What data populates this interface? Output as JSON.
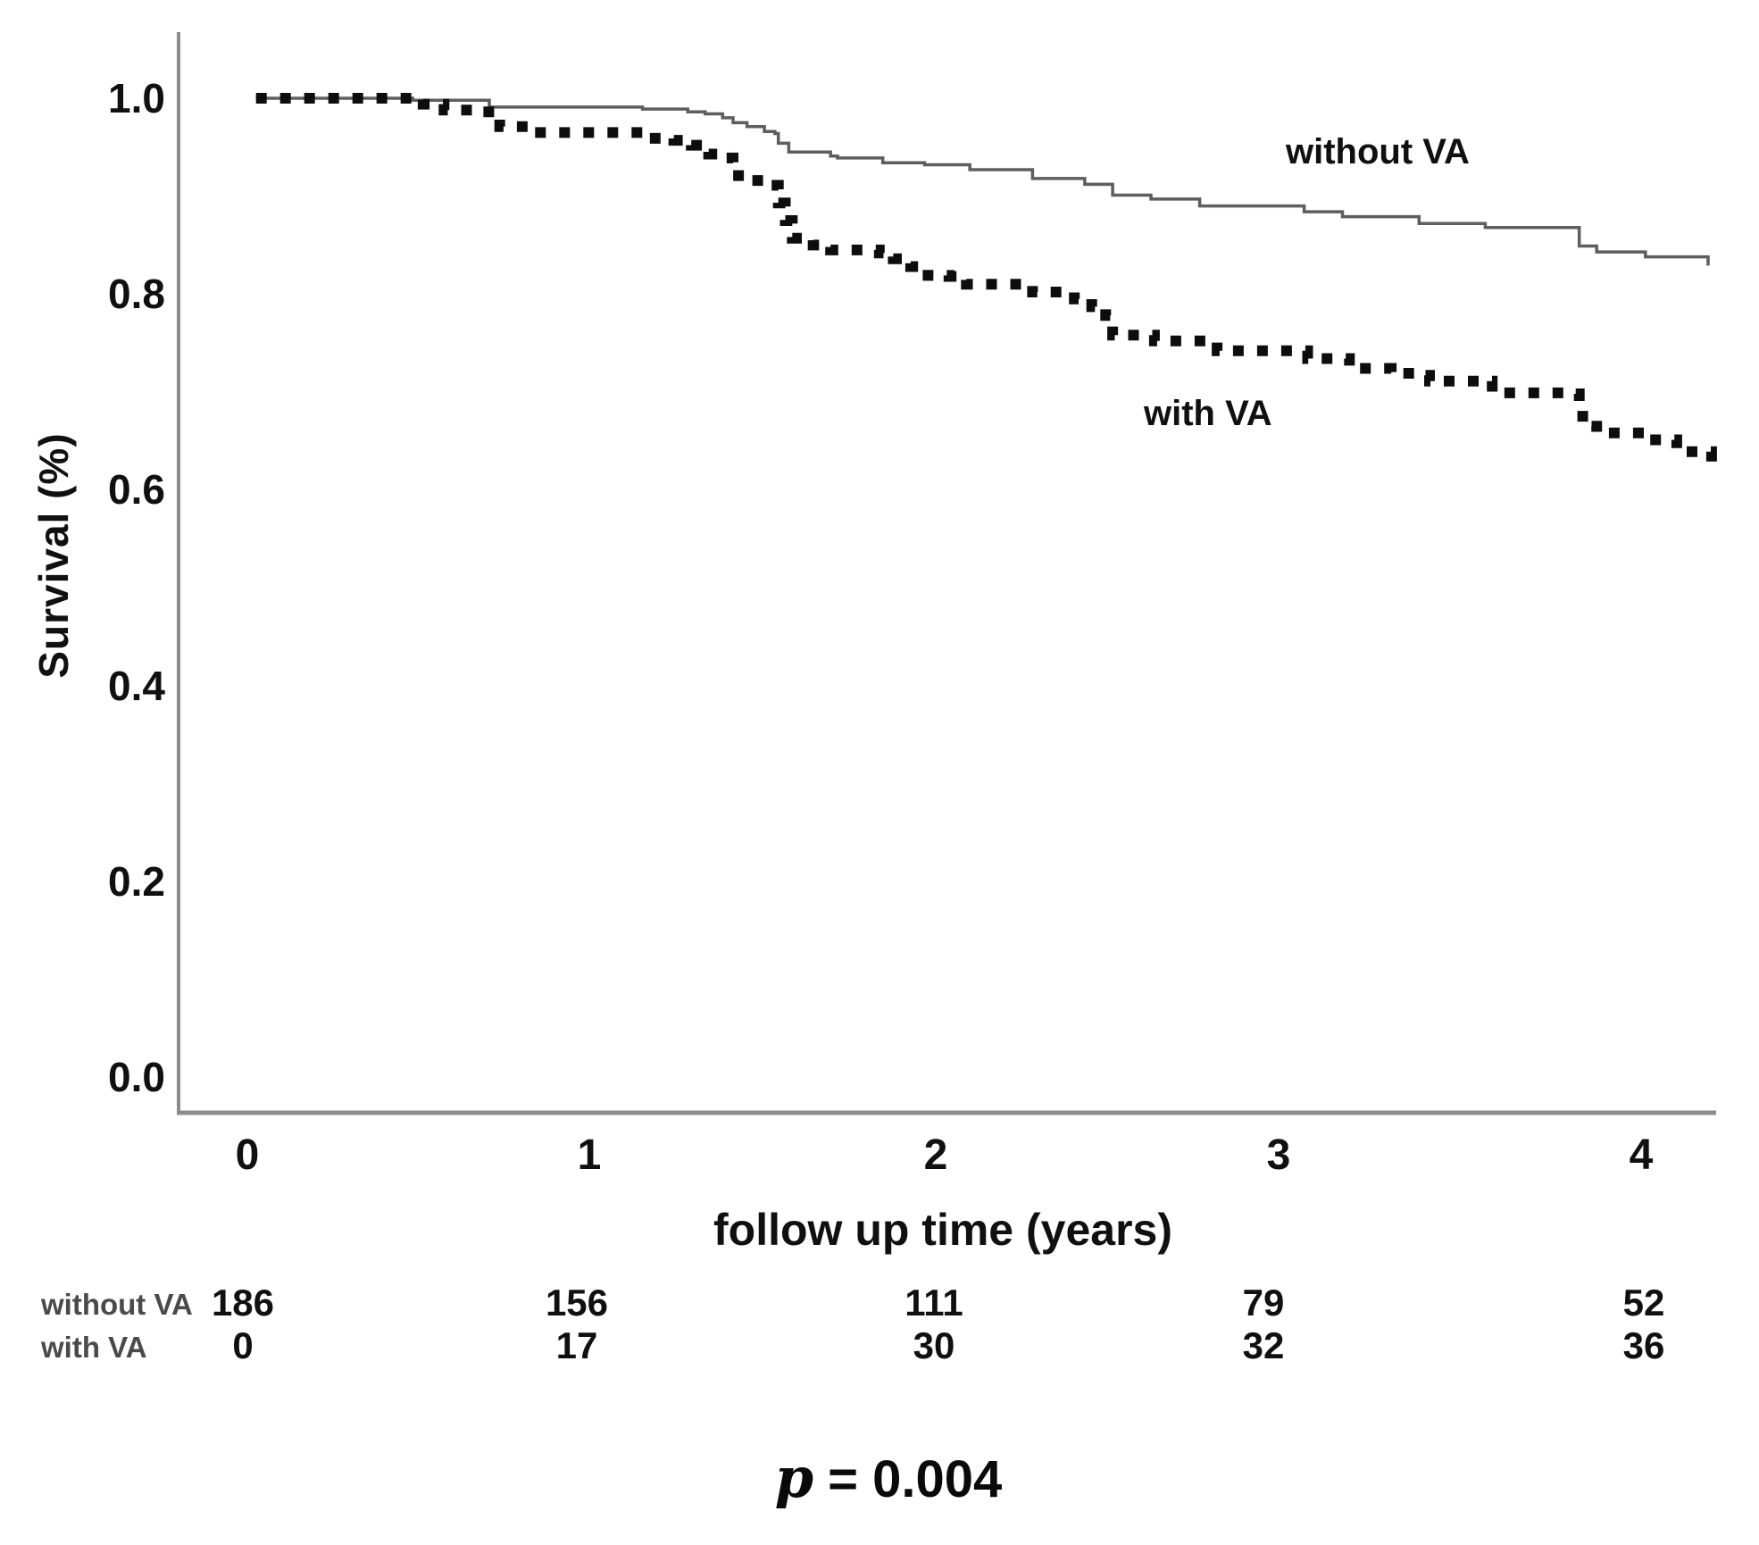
{
  "figure": {
    "background": "#ffffff"
  },
  "chart_data": {
    "type": "line",
    "subtype": "kaplan-meier-step-curves",
    "title": "",
    "xlabel": "follow up time (years)",
    "ylabel": "Survival (%)",
    "x_ticks": [
      {
        "label": "0",
        "value": 0
      },
      {
        "label": "1",
        "value": 1
      },
      {
        "label": "2",
        "value": 2
      },
      {
        "label": "3",
        "value": 3
      },
      {
        "label": "4",
        "value": 4
      }
    ],
    "y_ticks": [
      {
        "label": "1.0",
        "value": 1.0
      },
      {
        "label": "0.8",
        "value": 0.8
      },
      {
        "label": "0.6",
        "value": 0.6
      },
      {
        "label": "0.4",
        "value": 0.4
      },
      {
        "label": "0.2",
        "value": 0.2
      },
      {
        "label": "0.0",
        "value": 0.0
      }
    ],
    "xlim": [
      -0.19,
      4.35
    ],
    "ylim": [
      -0.035,
      1.065
    ],
    "grid": false,
    "legend_position": "annotations-on-plot",
    "series": [
      {
        "name": "without VA",
        "line_style": "solid",
        "color": "#5e5e5e",
        "points": [
          [
            0.03,
            1.0
          ],
          [
            0.45,
            1.0
          ],
          [
            0.48,
            0.998
          ],
          [
            0.7,
            0.991
          ],
          [
            1.14,
            0.989
          ],
          [
            1.27,
            0.986
          ],
          [
            1.32,
            0.984
          ],
          [
            1.37,
            0.98
          ],
          [
            1.4,
            0.975
          ],
          [
            1.44,
            0.971
          ],
          [
            1.49,
            0.966
          ],
          [
            1.52,
            0.964
          ],
          [
            1.53,
            0.954
          ],
          [
            1.56,
            0.945
          ],
          [
            1.68,
            0.941
          ],
          [
            1.7,
            0.939
          ],
          [
            1.83,
            0.934
          ],
          [
            1.95,
            0.932
          ],
          [
            2.08,
            0.927
          ],
          [
            2.26,
            0.918
          ],
          [
            2.41,
            0.912
          ],
          [
            2.49,
            0.901
          ],
          [
            2.6,
            0.897
          ],
          [
            2.74,
            0.89
          ],
          [
            3.04,
            0.884
          ],
          [
            3.15,
            0.879
          ],
          [
            3.37,
            0.872
          ],
          [
            3.56,
            0.868
          ],
          [
            3.83,
            0.849
          ],
          [
            3.88,
            0.843
          ],
          [
            4.02,
            0.838
          ],
          [
            4.2,
            0.829
          ]
        ]
      },
      {
        "name": "with VA",
        "line_style": "dotted",
        "color": "#0d0d0d",
        "points": [
          [
            0.03,
            1.0
          ],
          [
            0.45,
            1.0
          ],
          [
            0.51,
            0.994
          ],
          [
            0.57,
            0.988
          ],
          [
            0.68,
            0.986
          ],
          [
            0.73,
            0.971
          ],
          [
            0.82,
            0.965
          ],
          [
            1.1,
            0.965
          ],
          [
            1.16,
            0.959
          ],
          [
            1.23,
            0.957
          ],
          [
            1.28,
            0.952
          ],
          [
            1.33,
            0.943
          ],
          [
            1.38,
            0.939
          ],
          [
            1.4,
            0.921
          ],
          [
            1.45,
            0.916
          ],
          [
            1.51,
            0.911
          ],
          [
            1.53,
            0.893
          ],
          [
            1.55,
            0.875
          ],
          [
            1.57,
            0.857
          ],
          [
            1.63,
            0.85
          ],
          [
            1.68,
            0.845
          ],
          [
            1.82,
            0.842
          ],
          [
            1.86,
            0.836
          ],
          [
            1.91,
            0.828
          ],
          [
            1.96,
            0.819
          ],
          [
            2.02,
            0.818
          ],
          [
            2.07,
            0.81
          ],
          [
            2.22,
            0.81
          ],
          [
            2.26,
            0.802
          ],
          [
            2.38,
            0.795
          ],
          [
            2.43,
            0.787
          ],
          [
            2.47,
            0.778
          ],
          [
            2.49,
            0.758
          ],
          [
            2.61,
            0.752
          ],
          [
            2.75,
            0.752
          ],
          [
            2.79,
            0.742
          ],
          [
            3.0,
            0.742
          ],
          [
            3.05,
            0.734
          ],
          [
            3.17,
            0.724
          ],
          [
            3.29,
            0.719
          ],
          [
            3.36,
            0.717
          ],
          [
            3.4,
            0.711
          ],
          [
            3.54,
            0.711
          ],
          [
            3.58,
            0.699
          ],
          [
            3.79,
            0.698
          ],
          [
            3.83,
            0.689
          ],
          [
            3.84,
            0.665
          ],
          [
            3.88,
            0.658
          ],
          [
            4.0,
            0.651
          ],
          [
            4.11,
            0.639
          ],
          [
            4.21,
            0.628
          ]
        ]
      }
    ]
  },
  "risk_table": {
    "time_points": [
      0,
      1,
      2,
      3,
      4
    ],
    "rows": [
      {
        "label": "without VA",
        "values": [
          "186",
          "156",
          "111",
          "79",
          "52"
        ]
      },
      {
        "label": "with VA",
        "values": [
          "0",
          "17",
          "30",
          "32",
          "36"
        ]
      }
    ]
  },
  "p_value": {
    "symbol": "p",
    "rest": " = 0.004",
    "display": "p = 0.004"
  },
  "colors": {
    "axis": "#8c8c8c",
    "tick_text": "#101010",
    "risk_label_text": "#4a4a4a",
    "solid_series": "#5e5e5e",
    "dotted_series": "#0d0d0d"
  }
}
